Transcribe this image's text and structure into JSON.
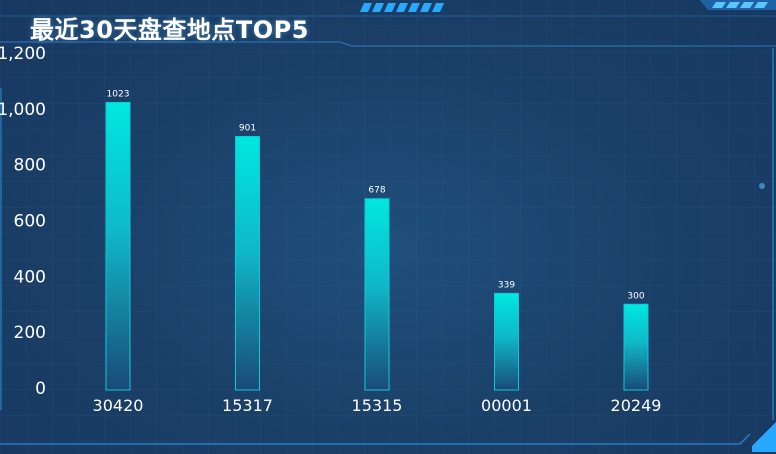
{
  "title": "最近30天盘查地点TOP5",
  "colors": {
    "bar_top": "#00e8e0",
    "bar_bottom": "#1a4a78",
    "frame": "#2a8ad0",
    "accent": "#29a8ff",
    "text": "#ffffff"
  },
  "chart_data": {
    "type": "bar",
    "categories": [
      "30420",
      "15317",
      "15315",
      "00001",
      "20249"
    ],
    "values": [
      1023,
      901,
      678,
      339,
      300
    ],
    "data_labels": [
      "1023",
      "901",
      "678",
      "339",
      "300"
    ],
    "yticks": [
      0,
      200,
      400,
      600,
      800,
      1000,
      1200
    ],
    "ytick_labels": [
      "0",
      "200",
      "400",
      "600",
      "800",
      "1,000",
      "1,200"
    ],
    "ylim": [
      0,
      1200
    ],
    "xlabel": "",
    "ylabel": "",
    "grid": false,
    "legend": "none"
  }
}
